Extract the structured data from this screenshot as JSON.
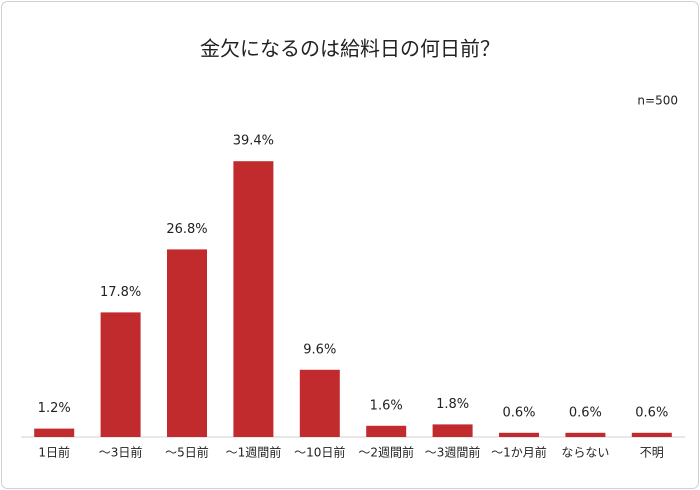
{
  "chart_data": {
    "type": "bar",
    "title": "金欠になるのは給料日の何日前？",
    "annotation": "n=500",
    "categories": [
      "1日前",
      "～3日前",
      "～5日前",
      "～1週間前",
      "～10日前",
      "～2週間前",
      "～3週間前",
      "～1か月前",
      "ならない",
      "不明"
    ],
    "values": [
      1.2,
      17.8,
      26.8,
      39.4,
      9.6,
      1.6,
      1.8,
      0.6,
      0.6,
      0.6
    ],
    "value_labels": [
      "1.2%",
      "17.8%",
      "26.8%",
      "39.4%",
      "9.6%",
      "1.6%",
      "1.8%",
      "0.6%",
      "0.6%",
      "0.6%"
    ],
    "color": "#c22b2e"
  }
}
